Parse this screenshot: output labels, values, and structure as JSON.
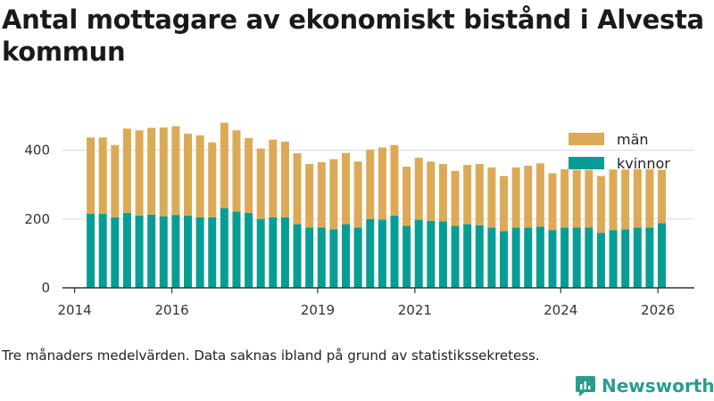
{
  "title": "Antal mottagare av ekonomiskt bistånd i Alvesta kommun",
  "footnote": "Tre månaders medelvärden. Data saknas ibland på grund av statistikssekretess.",
  "brand": "Newsworthy",
  "colors": {
    "man": "#dcaa56",
    "kvinnor": "#069e94",
    "axis": "#333333",
    "grid": "#d9d9d9"
  },
  "chart_data": {
    "type": "bar",
    "stacked": true,
    "title": "Antal mottagare av ekonomiskt bistånd i Alvesta kommun",
    "xlabel": "",
    "ylabel": "",
    "ylim": [
      0,
      500
    ],
    "xlim": [
      2013.75,
      2026.75
    ],
    "yticks": [
      0,
      200,
      400
    ],
    "xticks": [
      "2014",
      "2016",
      "2019",
      "2021",
      "2024",
      "2026"
    ],
    "xtick_positions": [
      2014,
      2016,
      2019,
      2021,
      2024,
      2026
    ],
    "legend_position": "top-right",
    "x": [
      2014.33,
      2014.58,
      2014.83,
      2015.08,
      2015.33,
      2015.58,
      2015.83,
      2016.08,
      2016.33,
      2016.58,
      2016.83,
      2017.08,
      2017.33,
      2017.58,
      2017.83,
      2018.08,
      2018.33,
      2018.58,
      2018.83,
      2019.08,
      2019.33,
      2019.58,
      2019.83,
      2020.08,
      2020.33,
      2020.58,
      2020.83,
      2021.08,
      2021.33,
      2021.58,
      2021.83,
      2022.08,
      2022.33,
      2022.58,
      2022.83,
      2023.08,
      2023.33,
      2023.58,
      2023.83,
      2024.08,
      2024.33,
      2024.58,
      2024.83,
      2025.08,
      2025.33,
      2025.58,
      2025.83,
      2026.08
    ],
    "series": [
      {
        "name": "kvinnor",
        "values": [
          215,
          215,
          205,
          218,
          210,
          213,
          208,
          212,
          210,
          205,
          205,
          232,
          222,
          218,
          200,
          205,
          205,
          185,
          175,
          175,
          170,
          185,
          175,
          200,
          198,
          210,
          180,
          198,
          195,
          193,
          180,
          185,
          182,
          175,
          165,
          175,
          175,
          178,
          168,
          175,
          175,
          175,
          160,
          168,
          170,
          175,
          175,
          188
        ]
      },
      {
        "name": "män",
        "values": [
          222,
          222,
          210,
          245,
          248,
          252,
          258,
          258,
          238,
          238,
          218,
          248,
          236,
          218,
          205,
          226,
          220,
          206,
          185,
          190,
          204,
          207,
          192,
          202,
          210,
          205,
          172,
          180,
          172,
          167,
          160,
          172,
          178,
          175,
          160,
          175,
          180,
          184,
          165,
          170,
          168,
          168,
          165,
          176,
          174,
          170,
          170,
          155
        ]
      }
    ]
  }
}
